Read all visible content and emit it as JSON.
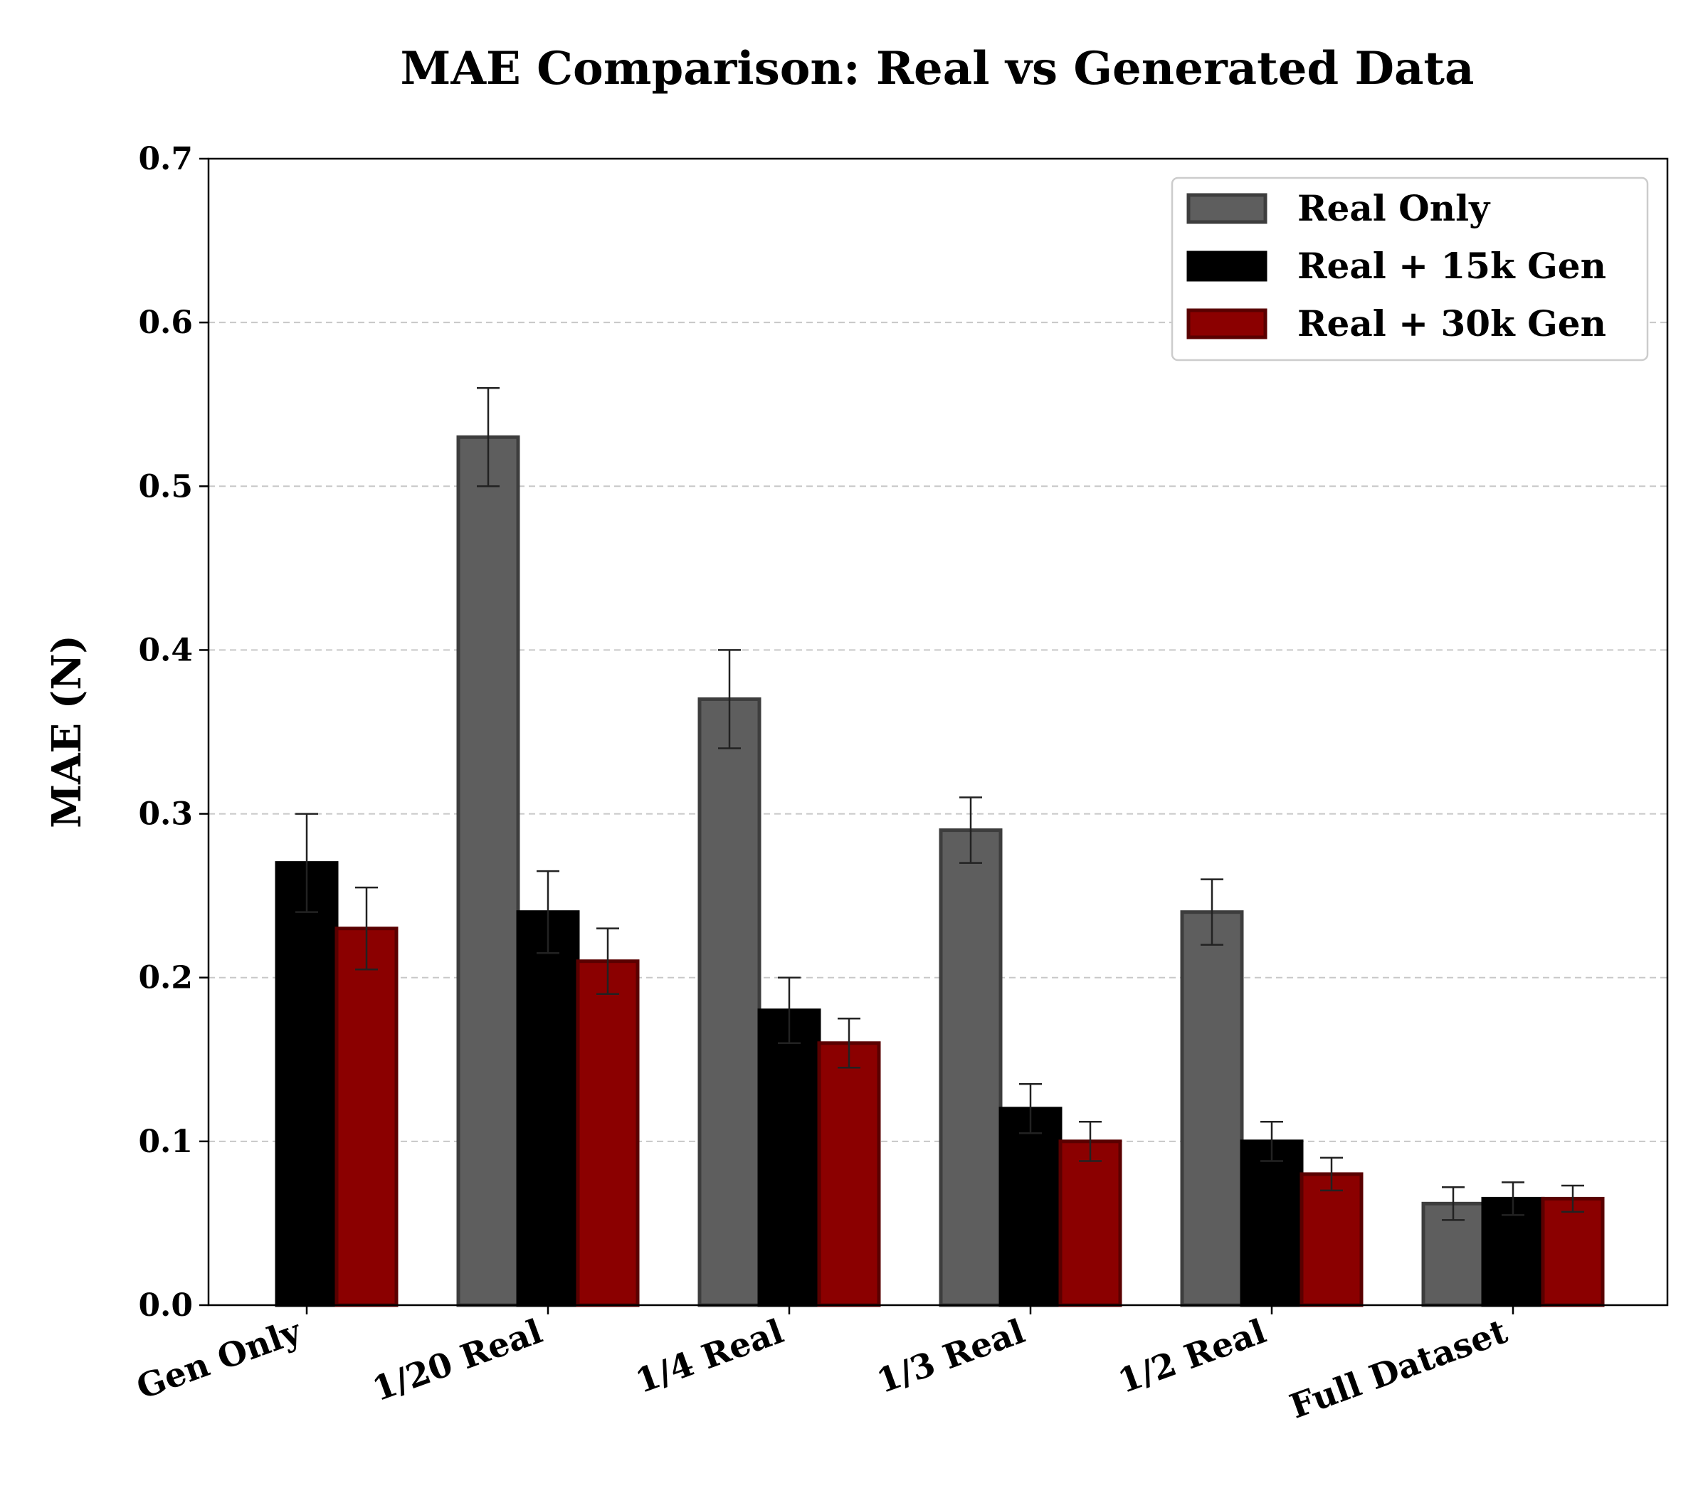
{
  "chart_data": {
    "type": "bar",
    "title": "MAE Comparison: Real vs Generated Data",
    "xlabel": "",
    "ylabel": "MAE (N)",
    "ylim": [
      0,
      0.7
    ],
    "yticks": [
      "0.0",
      "0.1",
      "0.2",
      "0.3",
      "0.4",
      "0.5",
      "0.6",
      "0.7"
    ],
    "grid": "y, dashed",
    "legend_position": "top-right",
    "categories": [
      "Gen Only",
      "1/20 Real",
      "1/4 Real",
      "1/3 Real",
      "1/2 Real",
      "Full Dataset"
    ],
    "series": [
      {
        "name": "Real Only",
        "color": "#5e5e5e",
        "edge": "#3d3d3d",
        "values": [
          null,
          0.53,
          0.37,
          0.29,
          0.24,
          0.062
        ],
        "errors": [
          null,
          0.03,
          0.03,
          0.02,
          0.02,
          0.01
        ]
      },
      {
        "name": "Real + 15k Gen",
        "color": "#000000",
        "edge": "#000000",
        "values": [
          0.27,
          0.24,
          0.18,
          0.12,
          0.1,
          0.065
        ],
        "errors": [
          0.03,
          0.025,
          0.02,
          0.015,
          0.012,
          0.01
        ]
      },
      {
        "name": "Real + 30k Gen",
        "color": "#8b0000",
        "edge": "#5a0000",
        "values": [
          0.23,
          0.21,
          0.16,
          0.1,
          0.08,
          0.065
        ],
        "errors": [
          0.025,
          0.02,
          0.015,
          0.012,
          0.01,
          0.008
        ]
      }
    ]
  }
}
